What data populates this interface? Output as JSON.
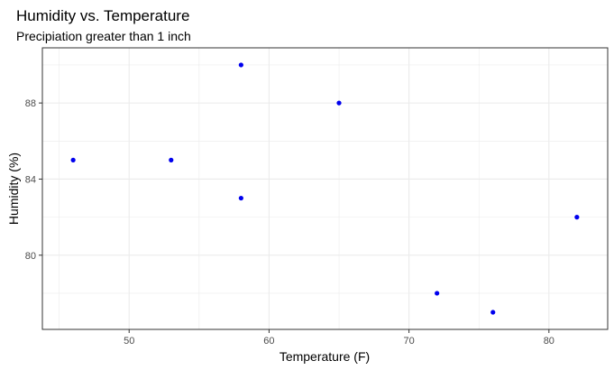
{
  "chart_data": {
    "type": "scatter",
    "title": "Humidity vs. Temperature",
    "subtitle": "Precipiation greater than 1 inch",
    "xlabel": "Temperature (F)",
    "ylabel": "Humidity (%)",
    "xlim": [
      43.8,
      84.2
    ],
    "ylim": [
      76.1,
      90.9
    ],
    "x_ticks": [
      50,
      60,
      70,
      80
    ],
    "y_ticks": [
      80,
      84,
      88
    ],
    "x_minor": [
      45,
      55,
      65,
      75
    ],
    "y_minor": [
      78,
      82,
      86,
      90
    ],
    "grid": true,
    "legend": "none",
    "series": [
      {
        "x": [
          46,
          53,
          58,
          58,
          65,
          72,
          76,
          82
        ],
        "y": [
          85,
          85,
          90,
          83,
          88,
          78,
          77,
          82
        ]
      }
    ]
  },
  "colors": {
    "point": "#0000ee",
    "grid": "#ebebeb",
    "panel_border": "#333333",
    "tick_text": "#4d4d4d"
  }
}
